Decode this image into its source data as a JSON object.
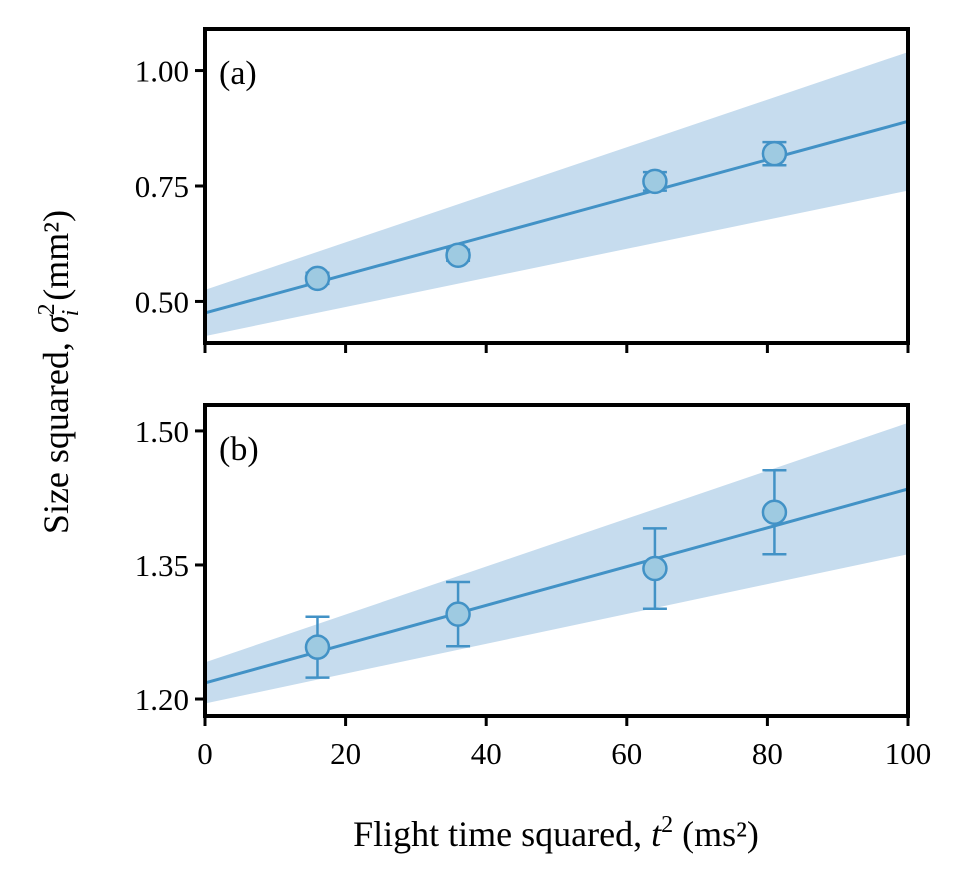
{
  "chart_data": [
    {
      "type": "scatter",
      "panel_label": "(a)",
      "x": [
        16,
        36,
        64,
        81
      ],
      "y": [
        0.55,
        0.6,
        0.76,
        0.82
      ],
      "yerr": [
        0.012,
        0.012,
        0.02,
        0.025
      ],
      "fit": {
        "x": [
          0,
          100
        ],
        "y": [
          0.475,
          0.89
        ]
      },
      "band": {
        "lower": [
          0.425,
          0.74
        ],
        "upper": [
          0.525,
          1.04
        ]
      },
      "ylim": [
        0.41,
        1.09
      ],
      "xlim": [
        0,
        100
      ],
      "yticks": [
        0.5,
        0.75,
        1.0
      ],
      "ytick_labels": [
        "0.50",
        "0.75",
        "1.00"
      ],
      "xticks": [
        0,
        20,
        40,
        60,
        80,
        100
      ],
      "show_xtick_labels": false
    },
    {
      "type": "scatter",
      "panel_label": "(b)",
      "x": [
        16,
        36,
        64,
        81
      ],
      "y": [
        1.258,
        1.295,
        1.346,
        1.409
      ],
      "yerr": [
        0.034,
        0.036,
        0.045,
        0.047
      ],
      "fit": {
        "x": [
          0,
          100
        ],
        "y": [
          1.218,
          1.435
        ]
      },
      "band": {
        "lower": [
          1.195,
          1.362
        ],
        "upper": [
          1.241,
          1.509
        ]
      },
      "ylim": [
        1.181,
        1.529
      ],
      "xlim": [
        0,
        100
      ],
      "yticks": [
        1.2,
        1.35,
        1.5
      ],
      "ytick_labels": [
        "1.20",
        "1.35",
        "1.50"
      ],
      "xticks": [
        0,
        20,
        40,
        60,
        80,
        100
      ],
      "xtick_labels": [
        "0",
        "20",
        "40",
        "60",
        "80",
        "100"
      ],
      "show_xtick_labels": true
    }
  ],
  "axes": {
    "xlabel_text": "Flight time squared, ",
    "xlabel_var": "t",
    "xlabel_exp": "2",
    "xlabel_unit": " (ms²)",
    "ylabel_text": "Size squared, ",
    "ylabel_var": "σ",
    "ylabel_sub": "i",
    "ylabel_exp": "2",
    "ylabel_unit": " (mm²)"
  },
  "colors": {
    "line": "#4292c6",
    "band": "#c6dcee",
    "marker_face": "#9ecae1",
    "marker_edge": "#4292c6"
  }
}
